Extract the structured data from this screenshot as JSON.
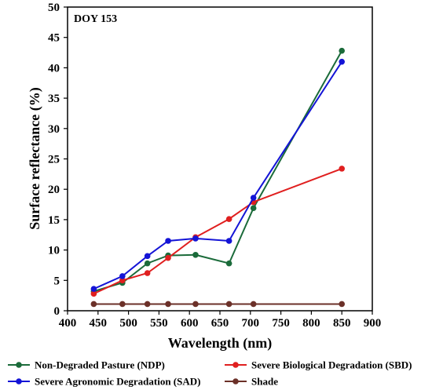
{
  "chart_data": {
    "type": "line",
    "annotation": "DOY 153",
    "xlabel": "Wavelength (nm)",
    "ylabel": "Surface reflectance (%)",
    "xlim": [
      400,
      900
    ],
    "ylim": [
      0,
      50
    ],
    "xticks": [
      400,
      450,
      500,
      550,
      600,
      650,
      700,
      750,
      800,
      850,
      900
    ],
    "yticks": [
      0,
      5,
      10,
      15,
      20,
      25,
      30,
      35,
      40,
      45,
      50
    ],
    "grid": false,
    "legend_position": "bottom",
    "x": [
      443,
      490,
      531,
      565,
      610,
      665,
      705,
      850
    ],
    "series": [
      {
        "name": "Non-Degraded Pasture (NDP)",
        "color": "#1b6b3a",
        "values": [
          3.2,
          4.6,
          7.8,
          9.1,
          9.2,
          7.8,
          16.9,
          42.8
        ]
      },
      {
        "name": "Severe Biological Degradation (SBD)",
        "color": "#e01f1f",
        "values": [
          2.8,
          5.0,
          6.2,
          8.7,
          12.1,
          15.1,
          17.9,
          23.4
        ]
      },
      {
        "name": "Severe Agronomic Degradation (SAD)",
        "color": "#1414d6",
        "values": [
          3.6,
          5.7,
          9.0,
          11.5,
          11.9,
          11.5,
          18.6,
          41.0
        ]
      },
      {
        "name": "Shade",
        "color": "#6b3028",
        "values": [
          1.1,
          1.1,
          1.1,
          1.1,
          1.1,
          1.1,
          1.1,
          1.1
        ]
      }
    ]
  }
}
